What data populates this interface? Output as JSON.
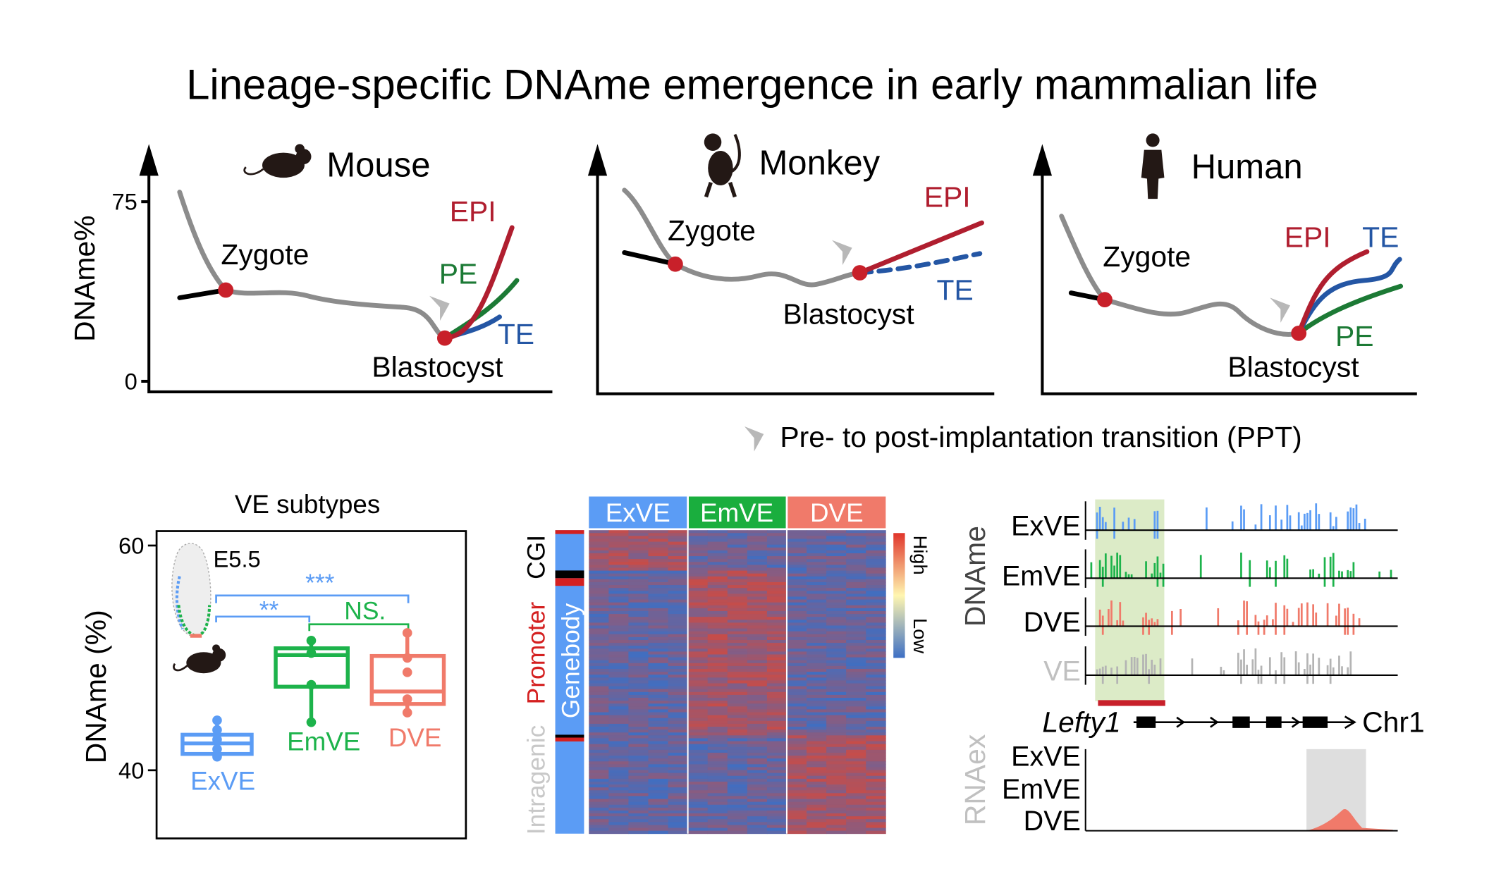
{
  "title": "Lineage-specific DNAme emergence in early mammalian life",
  "panels": [
    {
      "species": "Mouse",
      "y_label": "DNAme%",
      "yticks": [
        75,
        0
      ],
      "zygote": "Zygote",
      "blastocyst": "Blastocyst",
      "epi": "EPI",
      "pe": "PE",
      "te": "TE"
    },
    {
      "species": "Monkey",
      "zygote": "Zygote",
      "blastocyst": "Blastocyst",
      "epi": "EPI",
      "te": "TE"
    },
    {
      "species": "Human",
      "zygote": "Zygote",
      "blastocyst": "Blastocyst",
      "epi": "EPI",
      "pe": "PE",
      "te": "TE"
    }
  ],
  "legend": "Pre- to post-implantation transition (PPT)",
  "boxplot": {
    "title": "VE subtypes",
    "y_label": "DNAme (%)",
    "yticks": [
      60,
      40
    ],
    "stage": "E5.5",
    "groups": [
      "ExVE",
      "EmVE",
      "DVE"
    ],
    "significance": [
      "***",
      "**",
      "NS."
    ]
  },
  "heatmap": {
    "columns": [
      "ExVE",
      "EmVE",
      "DVE"
    ],
    "row_groups": [
      "CGI",
      "Promoter",
      "Genebody",
      "Intragenic"
    ],
    "scale": [
      "High",
      "Low"
    ]
  },
  "tracks": {
    "y_label": "DNAme",
    "samples": [
      "ExVE",
      "EmVE",
      "DVE",
      "VE"
    ],
    "gene": "Lefty1",
    "chromosome": "Chr1",
    "rna_label": "RNAex",
    "rna_samples": [
      "ExVE",
      "EmVE",
      "DVE"
    ]
  }
}
